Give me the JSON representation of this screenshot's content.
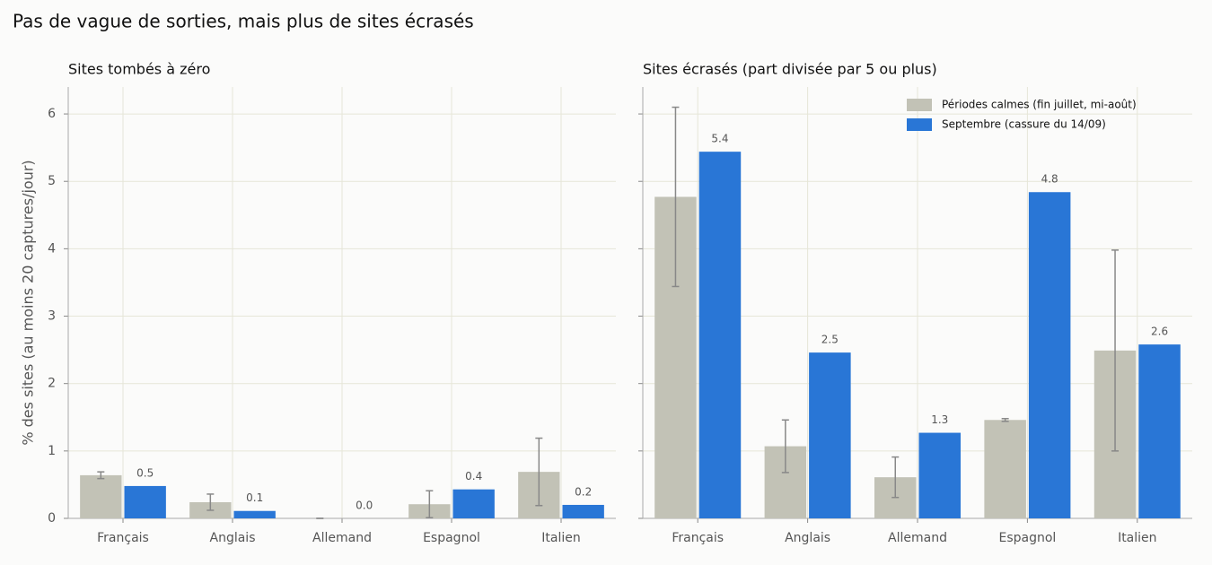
{
  "title": "Pas de vague de sorties, mais plus de sites écrasés",
  "chart_data": [
    {
      "type": "bar",
      "title": "Sites tombés à zéro",
      "ylabel": "% des sites (au moins 20 captures/jour)",
      "categories": [
        "Français",
        "Anglais",
        "Allemand",
        "Espagnol",
        "Italien"
      ],
      "series": [
        {
          "color": "#c2c2b6",
          "values": [
            0.64,
            0.24,
            0.0,
            0.21,
            0.69
          ],
          "errors": [
            0.05,
            0.12,
            0.0,
            0.2,
            0.5
          ]
        },
        {
          "color": "#2976d6",
          "values": [
            0.48,
            0.11,
            0.0,
            0.43,
            0.2
          ],
          "value_labels": [
            "0.5",
            "0.1",
            "0.0",
            "0.4",
            "0.2"
          ]
        }
      ],
      "ylim": [
        0,
        6.4
      ],
      "yticks": [
        0,
        1,
        2,
        3,
        4,
        5,
        6
      ],
      "grid": true
    },
    {
      "type": "bar",
      "title": "Sites écrasés (part divisée par 5 ou plus)",
      "categories": [
        "Français",
        "Anglais",
        "Allemand",
        "Espagnol",
        "Italien"
      ],
      "series": [
        {
          "name": "Périodes calmes (fin juillet, mi-août)",
          "color": "#c2c2b6",
          "values": [
            4.77,
            1.07,
            0.61,
            1.46,
            2.49
          ],
          "errors": [
            1.33,
            0.39,
            0.3,
            0.02,
            1.49
          ]
        },
        {
          "name": "Septembre (cassure du 14/09)",
          "color": "#2976d6",
          "values": [
            5.44,
            2.46,
            1.27,
            4.84,
            2.58
          ],
          "value_labels": [
            "5.4",
            "2.5",
            "1.3",
            "4.8",
            "2.6"
          ]
        }
      ],
      "ylim": [
        0,
        6.4
      ],
      "yticks": [
        0,
        1,
        2,
        3,
        4,
        5,
        6
      ],
      "grid": true,
      "legend": "upper right"
    }
  ]
}
